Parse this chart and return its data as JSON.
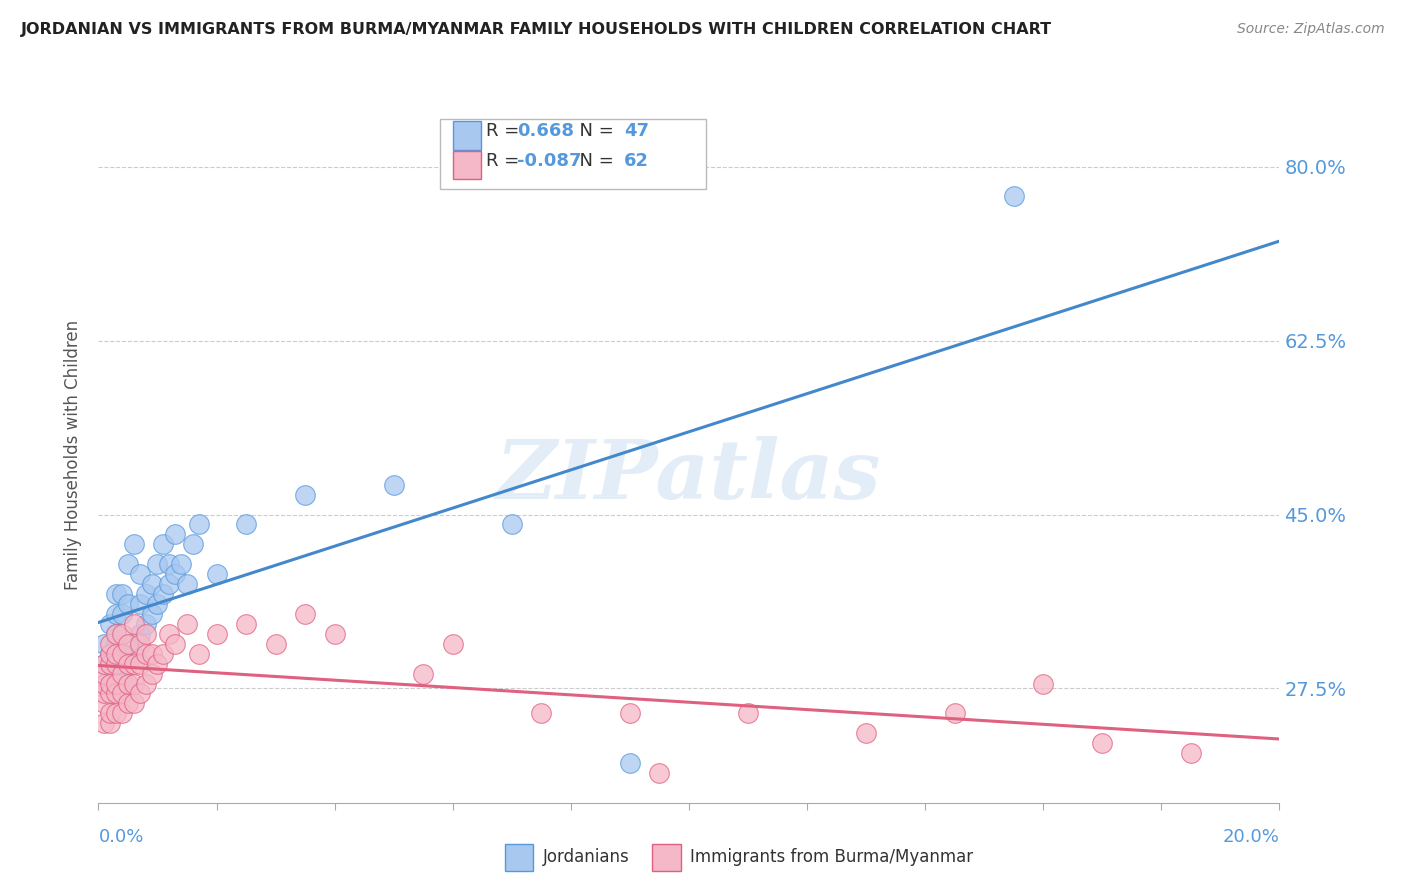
{
  "title": "JORDANIAN VS IMMIGRANTS FROM BURMA/MYANMAR FAMILY HOUSEHOLDS WITH CHILDREN CORRELATION CHART",
  "source": "Source: ZipAtlas.com",
  "ylabel": "Family Households with Children",
  "yticks_labels": [
    "27.5%",
    "45.0%",
    "62.5%",
    "80.0%"
  ],
  "ytick_vals": [
    0.275,
    0.45,
    0.625,
    0.8
  ],
  "xlim": [
    0.0,
    0.2
  ],
  "ylim": [
    0.16,
    0.86
  ],
  "legend1_R": "0.668",
  "legend1_N": "47",
  "legend2_R": "-0.087",
  "legend2_N": "62",
  "blue_fill": "#a8c8f0",
  "blue_edge": "#5599dd",
  "pink_fill": "#f5b8c8",
  "pink_edge": "#e06080",
  "blue_line": "#4488cc",
  "pink_line": "#e06080",
  "title_color": "#222222",
  "label_color": "#5599dd",
  "watermark": "ZIPatlas",
  "blue_x": [
    0.001,
    0.001,
    0.001,
    0.002,
    0.002,
    0.002,
    0.003,
    0.003,
    0.003,
    0.003,
    0.003,
    0.004,
    0.004,
    0.004,
    0.004,
    0.005,
    0.005,
    0.005,
    0.005,
    0.006,
    0.006,
    0.007,
    0.007,
    0.007,
    0.008,
    0.008,
    0.009,
    0.009,
    0.01,
    0.01,
    0.011,
    0.011,
    0.012,
    0.012,
    0.013,
    0.013,
    0.014,
    0.015,
    0.016,
    0.017,
    0.02,
    0.025,
    0.035,
    0.05,
    0.07,
    0.09,
    0.155
  ],
  "blue_y": [
    0.28,
    0.3,
    0.32,
    0.3,
    0.31,
    0.34,
    0.3,
    0.32,
    0.33,
    0.35,
    0.37,
    0.3,
    0.31,
    0.35,
    0.37,
    0.28,
    0.32,
    0.36,
    0.4,
    0.31,
    0.42,
    0.33,
    0.36,
    0.39,
    0.34,
    0.37,
    0.35,
    0.38,
    0.36,
    0.4,
    0.37,
    0.42,
    0.38,
    0.4,
    0.39,
    0.43,
    0.4,
    0.38,
    0.42,
    0.44,
    0.39,
    0.44,
    0.47,
    0.48,
    0.44,
    0.2,
    0.77
  ],
  "pink_x": [
    0.001,
    0.001,
    0.001,
    0.001,
    0.001,
    0.001,
    0.002,
    0.002,
    0.002,
    0.002,
    0.002,
    0.002,
    0.002,
    0.003,
    0.003,
    0.003,
    0.003,
    0.003,
    0.003,
    0.004,
    0.004,
    0.004,
    0.004,
    0.004,
    0.005,
    0.005,
    0.005,
    0.005,
    0.006,
    0.006,
    0.006,
    0.006,
    0.007,
    0.007,
    0.007,
    0.008,
    0.008,
    0.008,
    0.009,
    0.009,
    0.01,
    0.011,
    0.012,
    0.013,
    0.015,
    0.017,
    0.02,
    0.025,
    0.03,
    0.035,
    0.04,
    0.055,
    0.06,
    0.075,
    0.09,
    0.095,
    0.11,
    0.13,
    0.145,
    0.16,
    0.17,
    0.185
  ],
  "pink_y": [
    0.24,
    0.26,
    0.27,
    0.28,
    0.29,
    0.3,
    0.24,
    0.25,
    0.27,
    0.28,
    0.3,
    0.31,
    0.32,
    0.25,
    0.27,
    0.28,
    0.3,
    0.31,
    0.33,
    0.25,
    0.27,
    0.29,
    0.31,
    0.33,
    0.26,
    0.28,
    0.3,
    0.32,
    0.26,
    0.28,
    0.3,
    0.34,
    0.27,
    0.3,
    0.32,
    0.28,
    0.31,
    0.33,
    0.29,
    0.31,
    0.3,
    0.31,
    0.33,
    0.32,
    0.34,
    0.31,
    0.33,
    0.34,
    0.32,
    0.35,
    0.33,
    0.29,
    0.32,
    0.25,
    0.25,
    0.19,
    0.25,
    0.23,
    0.25,
    0.28,
    0.22,
    0.21
  ]
}
